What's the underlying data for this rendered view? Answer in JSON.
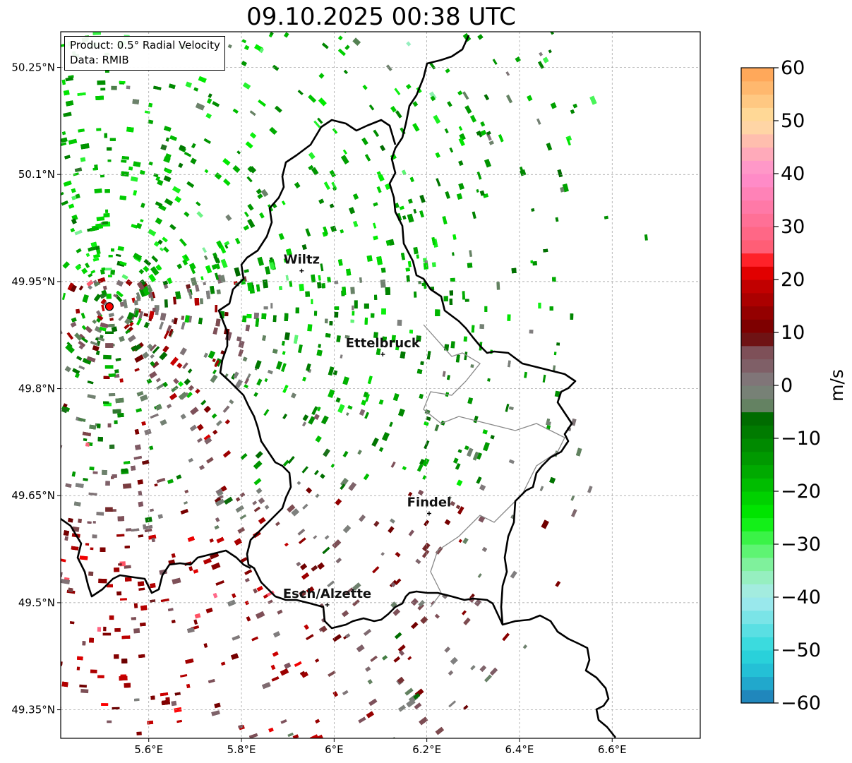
{
  "title": "09.10.2025 00:38 UTC",
  "info": {
    "product": "Product: 0.5° Radial Velocity",
    "source": "Data: RMIB"
  },
  "map": {
    "lon_range": [
      5.41,
      6.79
    ],
    "lat_range": [
      49.31,
      50.3
    ],
    "x_ticks": [
      {
        "value": 5.6,
        "label": "5.6°E"
      },
      {
        "value": 5.8,
        "label": "5.8°E"
      },
      {
        "value": 6.0,
        "label": "6°E"
      },
      {
        "value": 6.2,
        "label": "6.2°E"
      },
      {
        "value": 6.4,
        "label": "6.4°E"
      },
      {
        "value": 6.6,
        "label": "6.6°E"
      }
    ],
    "y_ticks": [
      {
        "value": 50.25,
        "label": "50.25°N"
      },
      {
        "value": 50.1,
        "label": "50.1°N"
      },
      {
        "value": 49.95,
        "label": "49.95°N"
      },
      {
        "value": 49.8,
        "label": "49.8°N"
      },
      {
        "value": 49.65,
        "label": "49.65°N"
      },
      {
        "value": 49.5,
        "label": "49.5°N"
      },
      {
        "value": 49.35,
        "label": "49.35°N"
      }
    ],
    "radar_site": {
      "lon": 5.515,
      "lat": 49.915,
      "color": "#ff0000"
    },
    "cities": [
      {
        "name": "Wiltz",
        "lon": 5.93,
        "lat": 49.965
      },
      {
        "name": "Ettelbruck",
        "lon": 6.105,
        "lat": 49.848
      },
      {
        "name": "Findel",
        "lon": 6.205,
        "lat": 49.625
      },
      {
        "name": "Esch/Alzette",
        "lon": 5.985,
        "lat": 49.497
      }
    ],
    "grid": true
  },
  "colorbar": {
    "label": "m/s",
    "min": -60,
    "max": 60,
    "ticks": [
      {
        "value": 60,
        "label": "60"
      },
      {
        "value": 50,
        "label": "50"
      },
      {
        "value": 40,
        "label": "40"
      },
      {
        "value": 30,
        "label": "30"
      },
      {
        "value": 20,
        "label": "20"
      },
      {
        "value": 10,
        "label": "10"
      },
      {
        "value": 0,
        "label": "0"
      },
      {
        "value": -10,
        "label": "−10"
      },
      {
        "value": -20,
        "label": "−20"
      },
      {
        "value": -30,
        "label": "−30"
      },
      {
        "value": -40,
        "label": "−40"
      },
      {
        "value": -50,
        "label": "−50"
      },
      {
        "value": -60,
        "label": "−60"
      }
    ],
    "stops": [
      {
        "v": -60,
        "c": "#1f77b4"
      },
      {
        "v": -55,
        "c": "#22b8d4"
      },
      {
        "v": -50,
        "c": "#2bd9dc"
      },
      {
        "v": -40,
        "c": "#a9eaee"
      },
      {
        "v": -35,
        "c": "#8ff0b0"
      },
      {
        "v": -30,
        "c": "#4df55f"
      },
      {
        "v": -25,
        "c": "#00ee00"
      },
      {
        "v": -15,
        "c": "#00a000"
      },
      {
        "v": -6,
        "c": "#006a00"
      },
      {
        "v": -5,
        "c": "#5a8358"
      },
      {
        "v": 0,
        "c": "#808080"
      },
      {
        "v": 5,
        "c": "#7e545f"
      },
      {
        "v": 8,
        "c": "#7d4a4e"
      },
      {
        "v": 9,
        "c": "#6a0000"
      },
      {
        "v": 20,
        "c": "#cc0000"
      },
      {
        "v": 23,
        "c": "#ff0000"
      },
      {
        "v": 25,
        "c": "#ff5a6e"
      },
      {
        "v": 40,
        "c": "#ff8fcf"
      },
      {
        "v": 45,
        "c": "#ffb3b3"
      },
      {
        "v": 50,
        "c": "#ffe0a0"
      },
      {
        "v": 60,
        "c": "#ffa050"
      }
    ]
  }
}
